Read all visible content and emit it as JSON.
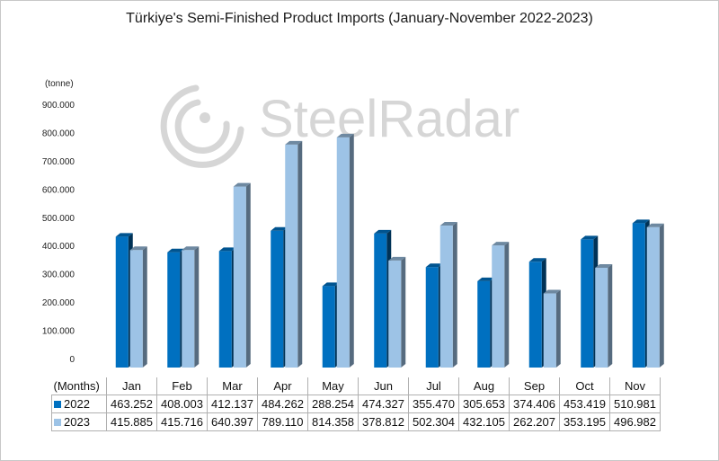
{
  "chart_data": {
    "type": "bar",
    "title": "Türkiye's Semi-Finished Product Imports (January-November 2022-2023)",
    "unit_label": "(tonne)",
    "watermark": "SteelRadar",
    "row_header": "(Months)",
    "categories": [
      "Jan",
      "Feb",
      "Mar",
      "Apr",
      "May",
      "Jun",
      "Jul",
      "Aug",
      "Sep",
      "Oct",
      "Nov"
    ],
    "ylim": [
      0,
      900000
    ],
    "yticks": [
      "0",
      "100.000",
      "200.000",
      "300.000",
      "400.000",
      "500.000",
      "600.000",
      "700.000",
      "800.000",
      "900.000"
    ],
    "grid": false,
    "legend": "data-table",
    "series": [
      {
        "name": "2022",
        "color": "#0070c0",
        "values": [
          463252,
          408003,
          412137,
          484262,
          288254,
          474327,
          355470,
          305653,
          374406,
          453419,
          510981
        ],
        "labels": [
          "463.252",
          "408.003",
          "412.137",
          "484.262",
          "288.254",
          "474.327",
          "355.470",
          "305.653",
          "374.406",
          "453.419",
          "510.981"
        ]
      },
      {
        "name": "2023",
        "color": "#9dc3e6",
        "values": [
          415885,
          415716,
          640397,
          789110,
          814358,
          378812,
          502304,
          432105,
          262207,
          353195,
          496982
        ],
        "labels": [
          "415.885",
          "415.716",
          "640.397",
          "789.110",
          "814.358",
          "378.812",
          "502.304",
          "432.105",
          "262.207",
          "353.195",
          "496.982"
        ]
      }
    ]
  }
}
